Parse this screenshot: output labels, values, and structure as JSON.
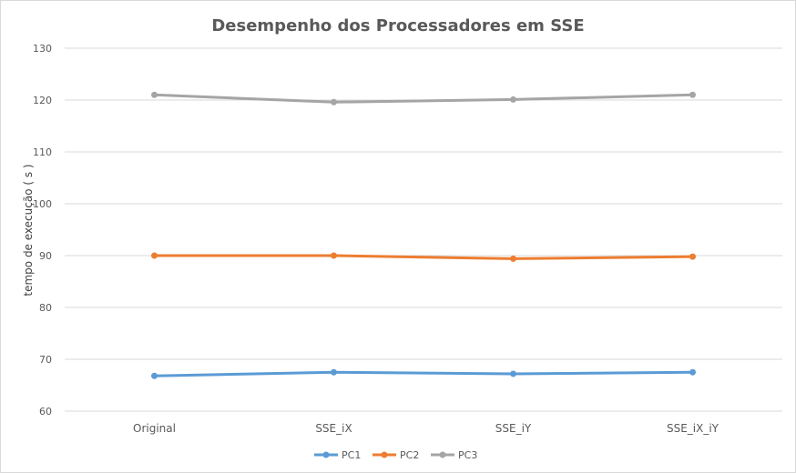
{
  "chart_data": {
    "type": "line",
    "title": "Desempenho dos Processadores  em SSE",
    "xlabel": "",
    "ylabel": "tempo de execução ( s )",
    "categories": [
      "Original",
      "SSE_iX",
      "SSE_iY",
      "SSE_iX_iY"
    ],
    "ylim": [
      60,
      130
    ],
    "yticks": [
      60,
      70,
      80,
      90,
      100,
      110,
      120,
      130
    ],
    "grid": true,
    "legend": "bottom-center",
    "series": [
      {
        "name": "PC1",
        "color": "#5b9bd5",
        "values": [
          66.8,
          67.5,
          67.2,
          67.5
        ]
      },
      {
        "name": "PC2",
        "color": "#ed7d31",
        "values": [
          90.0,
          90.0,
          89.4,
          89.8
        ]
      },
      {
        "name": "PC3",
        "color": "#a5a5a5",
        "values": [
          121.0,
          119.6,
          120.1,
          121.0
        ]
      }
    ]
  }
}
